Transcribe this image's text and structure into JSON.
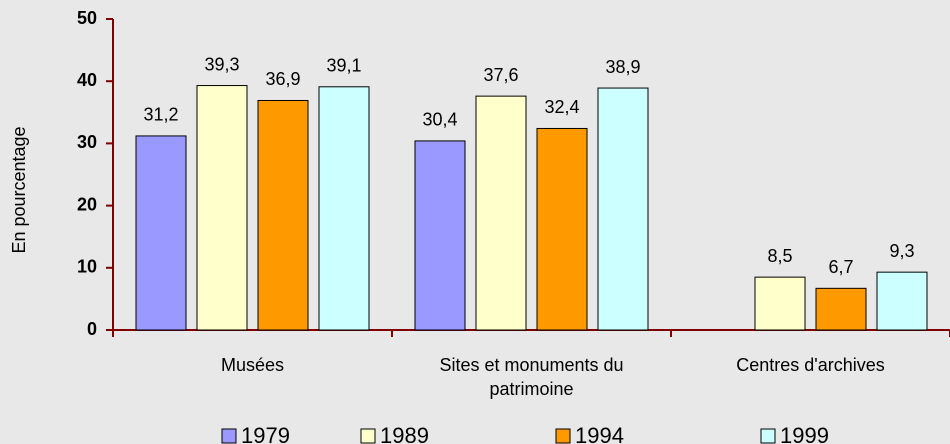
{
  "chart_data": {
    "type": "bar",
    "y_label": "En pourcentage",
    "categories": [
      "Musées",
      "Sites et monuments du patrimoine",
      "Centres d'archives"
    ],
    "series": [
      {
        "name": "1979",
        "color": "#9999ff",
        "values": [
          31.2,
          30.4,
          null
        ],
        "value_labels": [
          "31,2",
          "30,4",
          null
        ]
      },
      {
        "name": "1989",
        "color": "#ffffcc",
        "values": [
          39.3,
          37.6,
          8.5
        ],
        "value_labels": [
          "39,3",
          "37,6",
          "8,5"
        ]
      },
      {
        "name": "1994",
        "color": "#ff9900",
        "values": [
          36.9,
          32.4,
          6.7
        ],
        "value_labels": [
          "36,9",
          "32,4",
          "6,7"
        ]
      },
      {
        "name": "1999",
        "color": "#ccffff",
        "values": [
          39.1,
          38.9,
          9.3
        ],
        "value_labels": [
          "39,1",
          "38,9",
          "9,3"
        ]
      }
    ],
    "ylim": [
      0,
      50
    ],
    "yticks": [
      0,
      10,
      20,
      30,
      40,
      50
    ],
    "legend": "bottom"
  }
}
